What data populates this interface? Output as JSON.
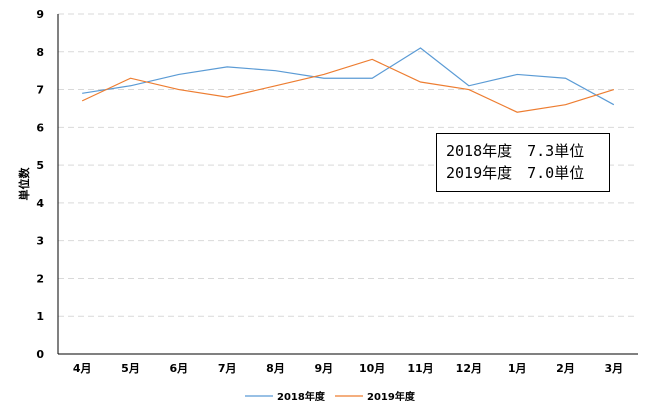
{
  "chart_data": {
    "type": "line",
    "categories": [
      "4月",
      "5月",
      "6月",
      "7月",
      "8月",
      "9月",
      "10月",
      "11月",
      "12月",
      "1月",
      "2月",
      "3月"
    ],
    "series": [
      {
        "name": "2018年度",
        "color": "#5B9BD5",
        "values": [
          6.9,
          7.1,
          7.4,
          7.6,
          7.5,
          7.3,
          7.3,
          8.1,
          7.1,
          7.4,
          7.3,
          6.6
        ]
      },
      {
        "name": "2019年度",
        "color": "#ED7D31",
        "values": [
          6.7,
          7.3,
          7.0,
          6.8,
          7.1,
          7.4,
          7.8,
          7.2,
          7.0,
          6.4,
          6.6,
          7.0
        ]
      }
    ],
    "ylabel": "単位数",
    "ylim": [
      0,
      9
    ],
    "yticks": [
      "0",
      "1",
      "2",
      "3",
      "4",
      "5",
      "6",
      "7",
      "8",
      "9"
    ],
    "grid": true,
    "legend_position": "bottom",
    "annotations": [
      "2018年度　7.3単位",
      "2019年度　7.0単位"
    ]
  }
}
